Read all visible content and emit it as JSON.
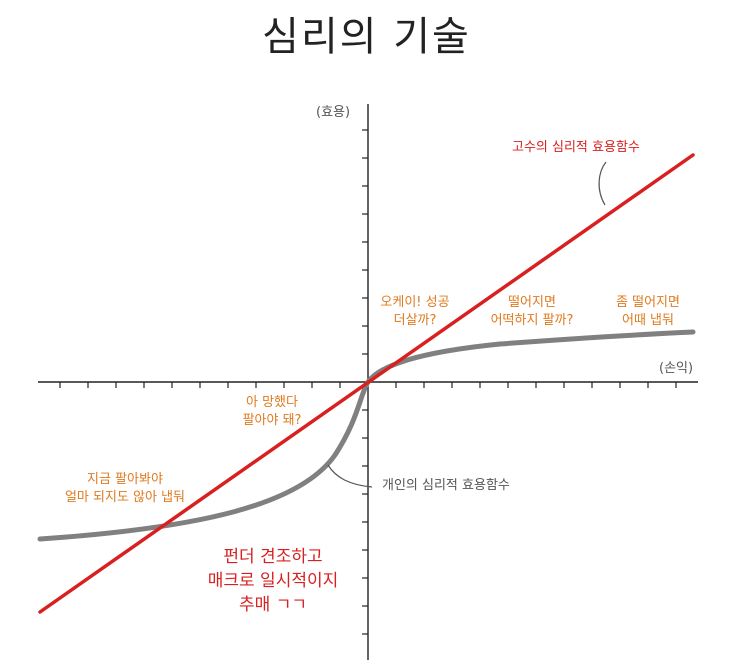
{
  "title": "심리의 기술",
  "axes": {
    "y_label": "(효용)",
    "x_label": "(손익)"
  },
  "curves": {
    "expert": {
      "label": "고수의 심리적 효용함수",
      "color": "#d92020"
    },
    "individual": {
      "label": "개인의 심리적 효용함수",
      "color": "#808080"
    }
  },
  "annotations": {
    "ok_success": [
      "오케이! 성공",
      "더살까?"
    ],
    "if_falls": [
      "떨어지면",
      "어떡하지 팔까?"
    ],
    "falls_bit": [
      "좀 떨어지면",
      "어때 냅둬"
    ],
    "oh_no": [
      "아 망했다",
      "팔아야 돼?"
    ],
    "sell_now": [
      "지금 팔아봐야",
      "얼마 되지도 않아 냅둬"
    ],
    "fundamentals": [
      "펀더 견조하고",
      "매크로 일시적이지",
      "추매 ㄱㄱ"
    ]
  }
}
